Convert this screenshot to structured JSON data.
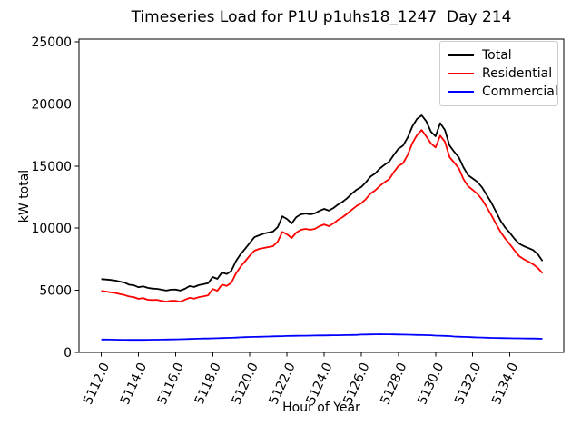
{
  "chart_data": {
    "type": "line",
    "title": "Timeseries Load for P1U p1uhs18_1247  Day 214",
    "xlabel": "Hour of Year",
    "ylabel": "kW total",
    "grid": false,
    "legend_position": "upper right",
    "xlim": [
      5110.8,
      5136.9
    ],
    "ylim": [
      0,
      25220
    ],
    "x_ticks": [
      5112,
      5114,
      5116,
      5118,
      5120,
      5122,
      5124,
      5126,
      5128,
      5130,
      5132,
      5134
    ],
    "x_tick_labels": [
      "5112.0",
      "5114.0",
      "5116.0",
      "5118.0",
      "5120.0",
      "5122.0",
      "5124.0",
      "5126.0",
      "5128.0",
      "5130.0",
      "5132.0",
      "5134.0"
    ],
    "y_ticks": [
      0,
      5000,
      10000,
      15000,
      20000,
      25000
    ],
    "y_tick_labels": [
      "0",
      "5000",
      "10000",
      "15000",
      "20000",
      "25000"
    ],
    "x": [
      5112,
      5112.25,
      5112.5,
      5112.75,
      5113,
      5113.25,
      5113.5,
      5113.75,
      5114,
      5114.25,
      5114.5,
      5114.75,
      5115,
      5115.25,
      5115.5,
      5115.75,
      5116,
      5116.25,
      5116.5,
      5116.75,
      5117,
      5117.25,
      5117.5,
      5117.75,
      5118,
      5118.25,
      5118.5,
      5118.75,
      5119,
      5119.25,
      5119.5,
      5119.75,
      5120,
      5120.25,
      5120.5,
      5120.75,
      5121,
      5121.25,
      5121.5,
      5121.75,
      5122,
      5122.25,
      5122.5,
      5122.75,
      5123,
      5123.25,
      5123.5,
      5123.75,
      5124,
      5124.25,
      5124.5,
      5124.75,
      5125,
      5125.25,
      5125.5,
      5125.75,
      5126,
      5126.25,
      5126.5,
      5126.75,
      5127,
      5127.25,
      5127.5,
      5127.75,
      5128,
      5128.25,
      5128.5,
      5128.75,
      5129,
      5129.25,
      5129.5,
      5129.75,
      5130,
      5130.25,
      5130.5,
      5130.75,
      5131,
      5131.25,
      5131.5,
      5131.75,
      5132,
      5132.25,
      5132.5,
      5132.75,
      5133,
      5133.25,
      5133.5,
      5133.75,
      5134,
      5134.25,
      5134.5,
      5134.75,
      5135,
      5135.25,
      5135.5,
      5135.75
    ],
    "series": [
      {
        "name": "Total",
        "color": "#000000",
        "values": [
          5900,
          5870,
          5830,
          5780,
          5700,
          5620,
          5450,
          5400,
          5250,
          5320,
          5200,
          5140,
          5120,
          5050,
          4980,
          5050,
          5060,
          4980,
          5120,
          5340,
          5270,
          5420,
          5490,
          5570,
          6070,
          5920,
          6430,
          6310,
          6560,
          7350,
          7900,
          8350,
          8820,
          9280,
          9430,
          9570,
          9650,
          9730,
          10090,
          10950,
          10740,
          10380,
          10890,
          11110,
          11180,
          11110,
          11190,
          11400,
          11550,
          11410,
          11620,
          11910,
          12130,
          12430,
          12800,
          13100,
          13310,
          13700,
          14150,
          14400,
          14800,
          15100,
          15350,
          15900,
          16400,
          16650,
          17300,
          18200,
          18800,
          19080,
          18600,
          17760,
          17400,
          18450,
          17900,
          16650,
          16150,
          15700,
          14900,
          14260,
          14000,
          13720,
          13280,
          12670,
          12060,
          11330,
          10600,
          10040,
          9620,
          9140,
          8750,
          8550,
          8400,
          8240,
          7900,
          7360
        ]
      },
      {
        "name": "Residential",
        "color": "#ff0000",
        "values": [
          4950,
          4900,
          4840,
          4790,
          4700,
          4620,
          4500,
          4450,
          4310,
          4380,
          4240,
          4220,
          4230,
          4150,
          4090,
          4160,
          4160,
          4080,
          4230,
          4390,
          4330,
          4450,
          4520,
          4600,
          5100,
          4960,
          5450,
          5350,
          5600,
          6350,
          6900,
          7350,
          7800,
          8190,
          8330,
          8410,
          8480,
          8550,
          8920,
          9700,
          9500,
          9210,
          9650,
          9870,
          9940,
          9870,
          9940,
          10160,
          10300,
          10160,
          10380,
          10670,
          10890,
          11180,
          11500,
          11790,
          12000,
          12350,
          12790,
          13040,
          13400,
          13700,
          13940,
          14500,
          15000,
          15230,
          15900,
          16860,
          17500,
          17900,
          17380,
          16820,
          16500,
          17450,
          16950,
          15720,
          15280,
          14820,
          13950,
          13380,
          13080,
          12760,
          12300,
          11700,
          11050,
          10350,
          9700,
          9150,
          8700,
          8200,
          7750,
          7500,
          7300,
          7100,
          6800,
          6380
        ]
      },
      {
        "name": "Commercial",
        "color": "#0000ff",
        "values": [
          1040,
          1035,
          1030,
          1022,
          1018,
          1015,
          1012,
          1010,
          1010,
          1012,
          1015,
          1020,
          1025,
          1030,
          1038,
          1045,
          1050,
          1060,
          1070,
          1082,
          1095,
          1105,
          1115,
          1122,
          1130,
          1142,
          1155,
          1168,
          1180,
          1195,
          1210,
          1225,
          1240,
          1250,
          1260,
          1272,
          1282,
          1292,
          1302,
          1312,
          1320,
          1328,
          1335,
          1342,
          1348,
          1354,
          1360,
          1365,
          1370,
          1375,
          1380,
          1385,
          1390,
          1398,
          1405,
          1412,
          1430,
          1438,
          1445,
          1452,
          1460,
          1458,
          1455,
          1450,
          1440,
          1435,
          1428,
          1420,
          1400,
          1395,
          1388,
          1380,
          1350,
          1342,
          1330,
          1318,
          1280,
          1265,
          1252,
          1240,
          1220,
          1208,
          1196,
          1184,
          1170,
          1165,
          1158,
          1150,
          1140,
          1136,
          1132,
          1128,
          1120,
          1116,
          1110,
          1100
        ]
      }
    ]
  }
}
